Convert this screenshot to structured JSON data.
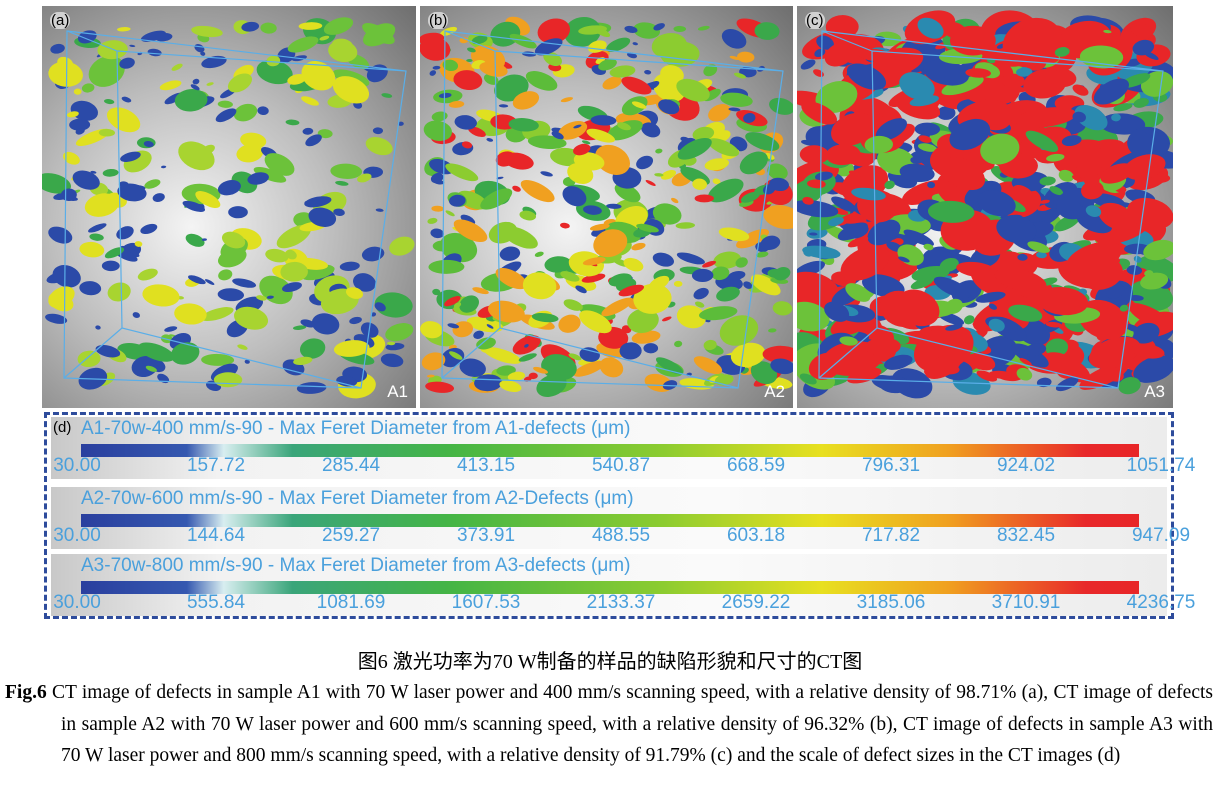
{
  "panels": [
    {
      "label": "(a)",
      "sample": "A1",
      "palette": [
        "#2b4aa8",
        "#2b4aa8",
        "#2b4aa8",
        "#2b4aa8",
        "#3aa84a",
        "#6cc23a",
        "#a8d430",
        "#e0e020"
      ],
      "accent": "#e82628"
    },
    {
      "label": "(b)",
      "sample": "A2",
      "palette": [
        "#2b4aa8",
        "#2b4aa8",
        "#3aa84a",
        "#5cbc3a",
        "#8ccc30",
        "#e0e020",
        "#f0a020",
        "#e82628"
      ],
      "accent": "#e82628"
    },
    {
      "label": "(c)",
      "sample": "A3",
      "palette": [
        "#2b4aa8",
        "#2b4aa8",
        "#2b4aa8",
        "#2a8ab0",
        "#3aa84a",
        "#6cc23a",
        "#e82628",
        "#e82628",
        "#e82628",
        "#e82628"
      ],
      "accent": "#e82628"
    }
  ],
  "scale": {
    "label": "(d)",
    "rows": [
      {
        "title": "A1-70w-400 mm/s-90 - Max Feret Diameter from A1-defects (μm)",
        "ticks": [
          "30.00",
          "157.72",
          "285.44",
          "413.15",
          "540.87",
          "668.59",
          "796.31",
          "924.02",
          "1051.74"
        ]
      },
      {
        "title": "A2-70w-600 mm/s-90 - Max Feret Diameter from A2-Defects (μm)",
        "ticks": [
          "30.00",
          "144.64",
          "259.27",
          "373.91",
          "488.55",
          "603.18",
          "717.82",
          "832.45",
          "947.09"
        ]
      },
      {
        "title": "A3-70w-800 mm/s-90 - Max Feret Diameter from A3-defects (μm)",
        "ticks": [
          "30.00",
          "555.84",
          "1081.69",
          "1607.53",
          "2133.37",
          "2659.22",
          "3185.06",
          "3710.91",
          "4236.75"
        ]
      }
    ]
  },
  "caption_cn": "图6 激光功率为70 W制备的样品的缺陷形貌和尺寸的CT图",
  "caption_label": "Fig.6",
  "caption_text": "CT image of defects in sample A1 with 70 W laser power and 400 mm/s scanning speed, with a relative density of 98.71% (a), CT image of defects in sample A2 with 70 W laser power and 600 mm/s scanning speed, with a relative density of 96.32% (b), CT image of defects in sample A3 with 70 W laser power and 800 mm/s scanning speed, with a relative density of 91.79% (c) and the scale of defect sizes in the CT images (d)"
}
